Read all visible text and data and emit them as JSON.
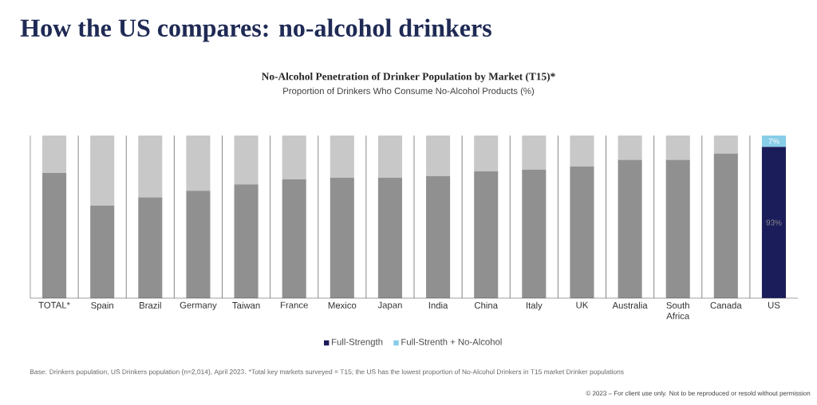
{
  "chart_data": {
    "type": "bar",
    "stacked": true,
    "ylim": [
      0,
      100
    ],
    "title": "How the US compares: no-alcohol drinkers",
    "subtitle": "No-Alcohol Penetration of Drinker Population by Market (T15)*",
    "annotations": [
      "Proportion of Drinkers Who Consume No-Alcohol Products (%)",
      "Base: Drinkers population, US Drinkers population (n=2,014), April 2023. *Total key markets surveyed = T15; the US has the lowest proportion of No-Alcohol Drinkers in T15 market Drinker populations",
      "© 2023 – For client use only. Not to be reproduced or resold without permission"
    ],
    "categories": [
      "TOTAL*",
      "Spain",
      "Brazil",
      "Germany",
      "Taiwan",
      "France",
      "Mexico",
      "Japan",
      "India",
      "China",
      "Italy",
      "UK",
      "Australia",
      "South Africa",
      "Canada",
      "US"
    ],
    "series": [
      {
        "name": "Full-Strength",
        "color": "#1b1c5a",
        "colors": [
          "#909090",
          "#909090",
          "#909090",
          "#909090",
          "#909090",
          "#909090",
          "#909090",
          "#909090",
          "#909090",
          "#909090",
          "#909090",
          "#909090",
          "#909090",
          "#909090",
          "#909090",
          "#1b1c5a"
        ],
        "values": [
          77,
          57,
          62,
          66,
          70,
          73,
          74,
          74,
          75,
          78,
          79,
          81,
          85,
          85,
          89,
          93
        ],
        "value_labels": [
          null,
          null,
          null,
          null,
          null,
          null,
          null,
          null,
          null,
          null,
          null,
          null,
          null,
          null,
          null,
          "93%"
        ]
      },
      {
        "name": "Full-Strenth + No-Alcohol",
        "color": "#87cde8",
        "colors": [
          "#c8c8c8",
          "#c8c8c8",
          "#c8c8c8",
          "#c8c8c8",
          "#c8c8c8",
          "#c8c8c8",
          "#c8c8c8",
          "#c8c8c8",
          "#c8c8c8",
          "#c8c8c8",
          "#c8c8c8",
          "#c8c8c8",
          "#c8c8c8",
          "#c8c8c8",
          "#c8c8c8",
          "#87cde8"
        ],
        "values": [
          23,
          43,
          38,
          34,
          30,
          27,
          26,
          26,
          25,
          22,
          21,
          19,
          15,
          15,
          11,
          7
        ],
        "value_labels": [
          null,
          null,
          null,
          null,
          null,
          null,
          null,
          null,
          null,
          null,
          null,
          null,
          null,
          null,
          null,
          "7%"
        ]
      }
    ],
    "grid": "x",
    "legend": "bottom"
  }
}
